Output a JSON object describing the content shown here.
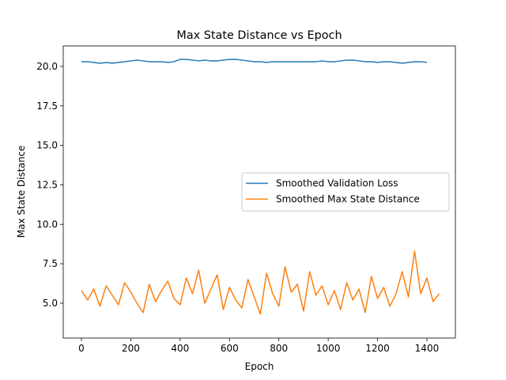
{
  "chart_data": {
    "type": "line",
    "title": "Max State Distance vs Epoch",
    "x_label": "Epoch",
    "y_label": "Max State Distance",
    "x": [
      0,
      25,
      50,
      75,
      100,
      125,
      150,
      175,
      200,
      225,
      250,
      275,
      300,
      325,
      350,
      375,
      400,
      425,
      450,
      475,
      500,
      525,
      550,
      575,
      600,
      625,
      650,
      675,
      700,
      725,
      750,
      775,
      800,
      825,
      850,
      875,
      900,
      925,
      950,
      975,
      1000,
      1025,
      1050,
      1075,
      1100,
      1125,
      1150,
      1175,
      1200,
      1225,
      1250,
      1275,
      1300,
      1325,
      1350,
      1375,
      1400,
      1425,
      1450
    ],
    "series": [
      {
        "name": "Smoothed Validation Loss",
        "color": "#1f77b4",
        "values": [
          20.3,
          20.3,
          20.25,
          20.2,
          20.25,
          20.2,
          20.25,
          20.3,
          20.35,
          20.4,
          20.35,
          20.3,
          20.3,
          20.3,
          20.25,
          20.3,
          20.45,
          20.45,
          20.4,
          20.35,
          20.4,
          20.35,
          20.35,
          20.4,
          20.45,
          20.45,
          20.4,
          20.35,
          20.3,
          20.3,
          20.25,
          20.3,
          20.3,
          20.3,
          20.3,
          20.3,
          20.3,
          20.3,
          20.3,
          20.35,
          20.3,
          20.3,
          20.35,
          20.4,
          20.4,
          20.35,
          20.3,
          20.3,
          20.25,
          20.3,
          20.3,
          20.25,
          20.2,
          20.25,
          20.3,
          20.3,
          20.25,
          null,
          null
        ]
      },
      {
        "name": "Smoothed Max State Distance",
        "color": "#ff7f0e",
        "values": [
          5.8,
          5.2,
          5.9,
          4.8,
          6.1,
          5.5,
          4.9,
          6.3,
          5.7,
          5.0,
          4.4,
          6.2,
          5.1,
          5.8,
          6.4,
          5.3,
          4.9,
          6.6,
          5.6,
          7.1,
          5.0,
          5.9,
          6.8,
          4.6,
          6.0,
          5.2,
          4.7,
          6.5,
          5.4,
          4.3,
          6.9,
          5.6,
          4.8,
          7.3,
          5.7,
          6.2,
          4.5,
          7.0,
          5.5,
          6.1,
          4.9,
          5.8,
          4.6,
          6.3,
          5.2,
          5.9,
          4.4,
          6.7,
          5.3,
          6.0,
          4.8,
          5.6,
          7.0,
          5.4,
          8.3,
          5.6,
          6.6,
          5.1,
          5.6
        ]
      }
    ],
    "xlim": [
      -73.7,
      1515.5
    ],
    "ylim": [
      2.79,
      21.3
    ],
    "xticks": [
      0,
      200,
      400,
      600,
      800,
      1000,
      1200,
      1400
    ],
    "yticks": [
      {
        "value": 5,
        "label": "5.0"
      },
      {
        "value": 7.5,
        "label": "7.5"
      },
      {
        "value": 10,
        "label": "10.0"
      },
      {
        "value": 12.5,
        "label": "12.5"
      },
      {
        "value": 15,
        "label": "15.0"
      },
      {
        "value": 17.5,
        "label": "17.5"
      },
      {
        "value": 20,
        "label": "20.0"
      }
    ],
    "legend": "center right",
    "grid": false
  }
}
